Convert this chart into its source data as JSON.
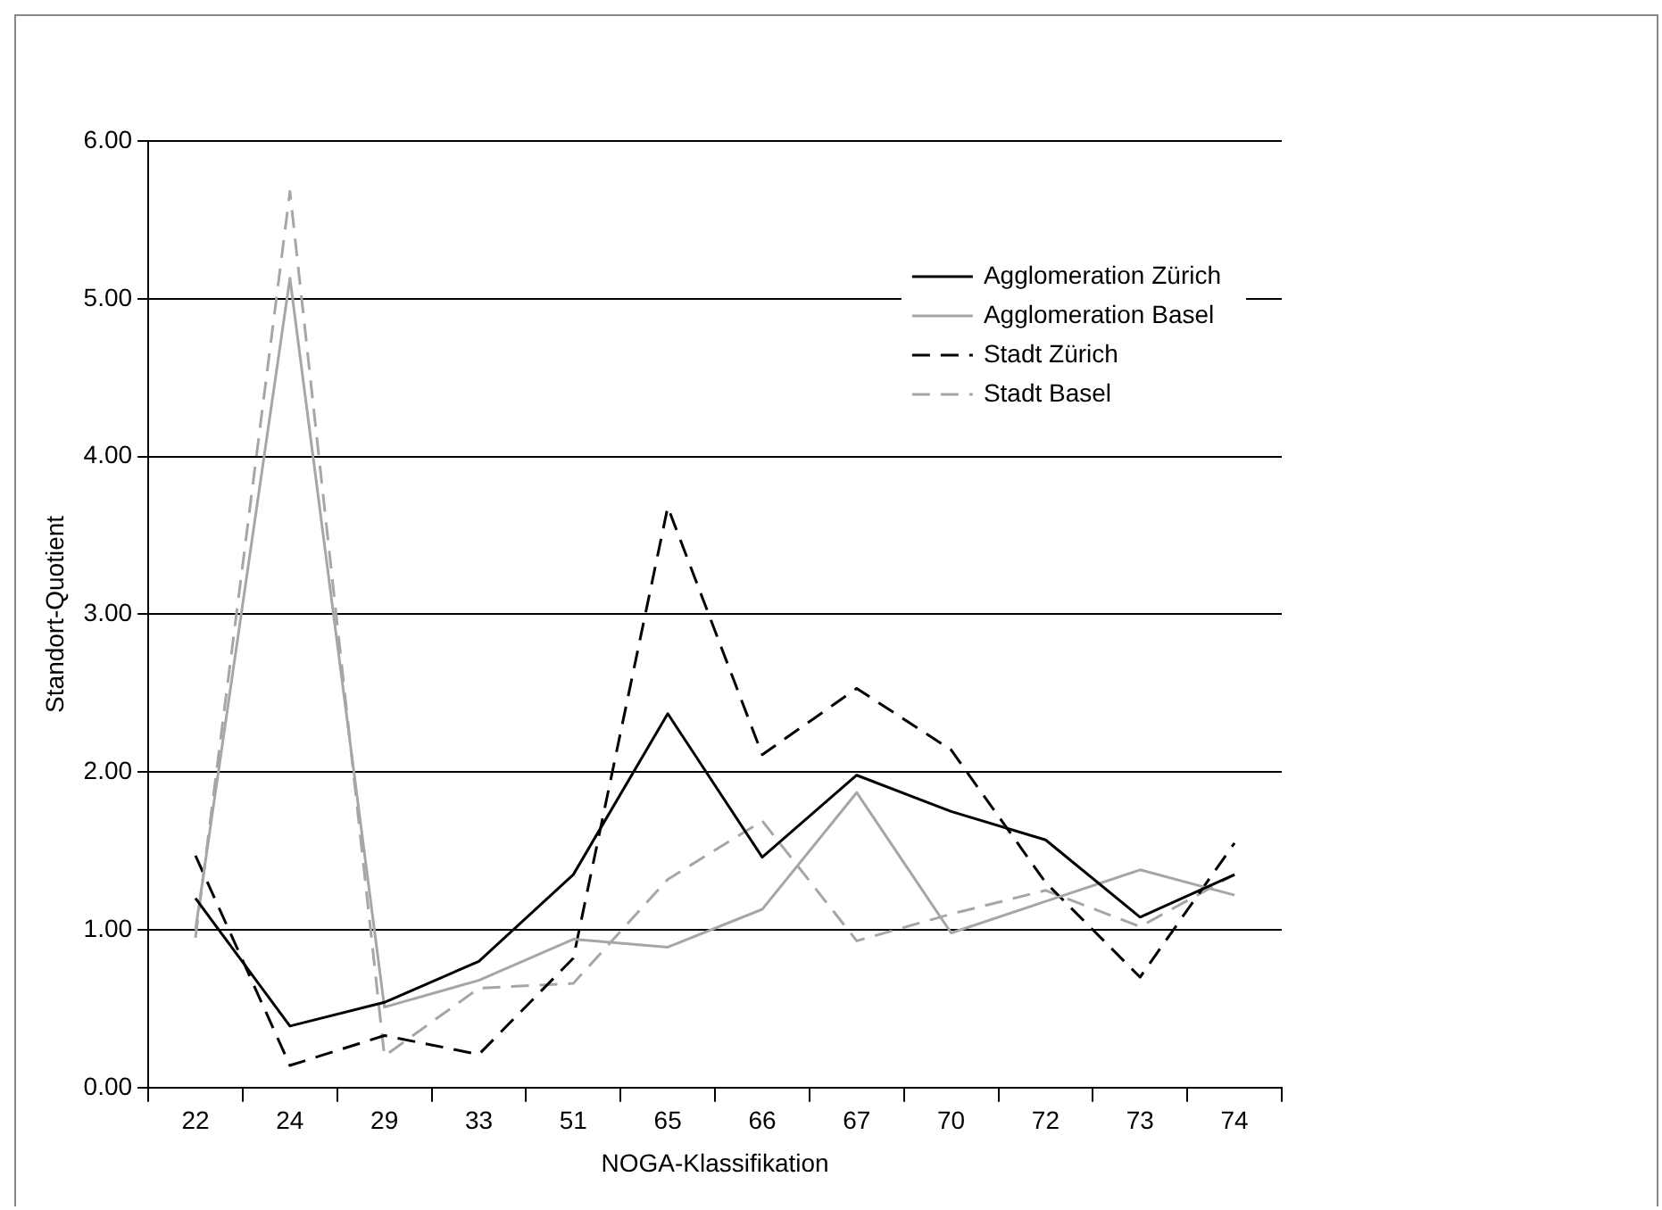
{
  "chart_data": {
    "type": "line",
    "xlabel": "NOGA-Klassifikation",
    "ylabel": "Standort-Quotient",
    "categories": [
      "22",
      "24",
      "29",
      "33",
      "51",
      "65",
      "66",
      "67",
      "70",
      "72",
      "73",
      "74"
    ],
    "ylim": [
      0,
      6
    ],
    "yticks": [
      {
        "value": 0,
        "label": "0.00"
      },
      {
        "value": 1,
        "label": "1.00"
      },
      {
        "value": 2,
        "label": "2.00"
      },
      {
        "value": 3,
        "label": "3.00"
      },
      {
        "value": 4,
        "label": "4.00"
      },
      {
        "value": 5,
        "label": "5.00"
      },
      {
        "value": 6,
        "label": "6.00"
      }
    ],
    "grid": "y",
    "legend": "top right",
    "marker": "none",
    "series": [
      {
        "name": "Agglomeration Zürich",
        "color": "#000000",
        "line_style": "solid",
        "values": [
          1.2,
          0.39,
          0.54,
          0.8,
          1.35,
          2.37,
          1.46,
          1.98,
          1.75,
          1.57,
          1.08,
          1.35
        ]
      },
      {
        "name": "Agglomeration Basel",
        "color": "#a6a6a6",
        "line_style": "solid",
        "values": [
          1.0,
          5.13,
          0.51,
          0.68,
          0.94,
          0.89,
          1.13,
          1.87,
          0.98,
          1.18,
          1.38,
          1.22
        ]
      },
      {
        "name": "Stadt Zürich",
        "color": "#000000",
        "line_style": "dashed",
        "values": [
          1.47,
          0.14,
          0.33,
          0.21,
          0.82,
          3.68,
          2.11,
          2.53,
          2.14,
          1.3,
          0.7,
          1.55
        ]
      },
      {
        "name": "Stadt Basel",
        "color": "#a6a6a6",
        "line_style": "dashed",
        "values": [
          0.95,
          5.68,
          0.2,
          0.63,
          0.66,
          1.32,
          1.69,
          0.93,
          1.1,
          1.25,
          1.02,
          1.35
        ]
      }
    ]
  }
}
